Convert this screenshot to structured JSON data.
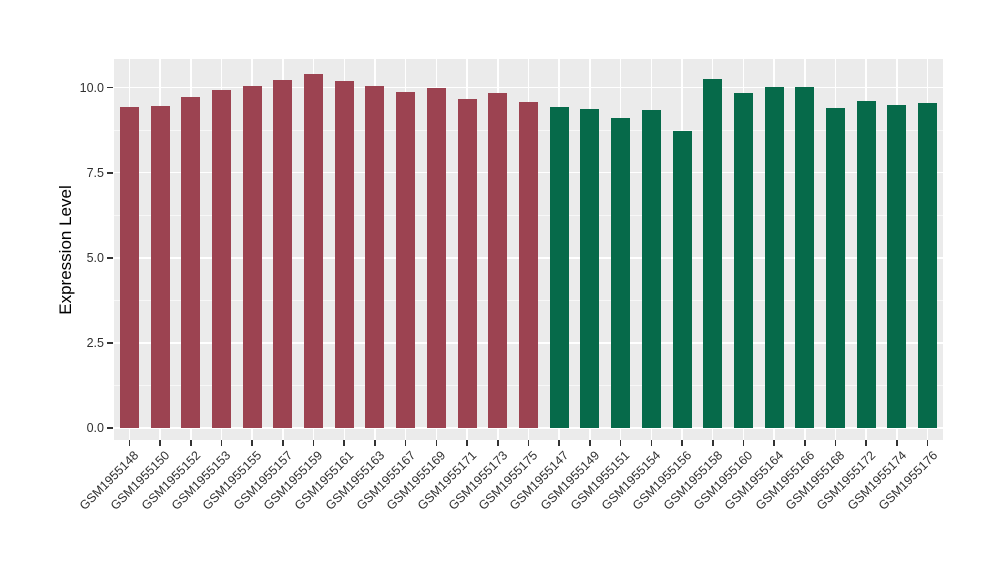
{
  "colors": {
    "figure_bg": "#FFFFFF",
    "panel_bg": "#EBEBEB",
    "grid_major": "#FFFFFF",
    "grid_minor": "rgba(255,255,255,0.6)",
    "tick_mark": "#333333",
    "axis_text": "#303030",
    "group1": "#9C4351",
    "group2": "#066A4A"
  },
  "chart_data": {
    "type": "bar",
    "title": "",
    "xlabel": "",
    "ylabel": "Expression Level",
    "ylim": [
      -0.35,
      10.84
    ],
    "yticks": [
      0,
      2.5,
      5,
      7.5,
      10
    ],
    "ytick_labels": [
      "0.0",
      "2.5",
      "5.0",
      "7.5",
      "10.0"
    ],
    "minor_yticks": [
      1.25,
      3.75,
      6.25,
      8.75
    ],
    "grid": true,
    "legend_position": "none",
    "bars": [
      {
        "label": "GSM1955148",
        "value": 9.43,
        "group": "group1"
      },
      {
        "label": "GSM1955150",
        "value": 9.46,
        "group": "group1"
      },
      {
        "label": "GSM1955152",
        "value": 9.71,
        "group": "group1"
      },
      {
        "label": "GSM1955153",
        "value": 9.93,
        "group": "group1"
      },
      {
        "label": "GSM1955155",
        "value": 10.06,
        "group": "group1"
      },
      {
        "label": "GSM1955157",
        "value": 10.21,
        "group": "group1"
      },
      {
        "label": "GSM1955159",
        "value": 10.4,
        "group": "group1"
      },
      {
        "label": "GSM1955161",
        "value": 10.18,
        "group": "group1"
      },
      {
        "label": "GSM1955163",
        "value": 10.05,
        "group": "group1"
      },
      {
        "label": "GSM1955167",
        "value": 9.88,
        "group": "group1"
      },
      {
        "label": "GSM1955169",
        "value": 9.99,
        "group": "group1"
      },
      {
        "label": "GSM1955171",
        "value": 9.67,
        "group": "group1"
      },
      {
        "label": "GSM1955173",
        "value": 9.83,
        "group": "group1"
      },
      {
        "label": "GSM1955175",
        "value": 9.57,
        "group": "group1"
      },
      {
        "label": "GSM1955147",
        "value": 9.43,
        "group": "group2"
      },
      {
        "label": "GSM1955149",
        "value": 9.37,
        "group": "group2"
      },
      {
        "label": "GSM1955151",
        "value": 9.12,
        "group": "group2"
      },
      {
        "label": "GSM1955154",
        "value": 9.34,
        "group": "group2"
      },
      {
        "label": "GSM1955156",
        "value": 8.72,
        "group": "group2"
      },
      {
        "label": "GSM1955158",
        "value": 10.26,
        "group": "group2"
      },
      {
        "label": "GSM1955160",
        "value": 9.85,
        "group": "group2"
      },
      {
        "label": "GSM1955164",
        "value": 10.02,
        "group": "group2"
      },
      {
        "label": "GSM1955166",
        "value": 10.03,
        "group": "group2"
      },
      {
        "label": "GSM1955168",
        "value": 9.4,
        "group": "group2"
      },
      {
        "label": "GSM1955172",
        "value": 9.61,
        "group": "group2"
      },
      {
        "label": "GSM1955174",
        "value": 9.5,
        "group": "group2"
      },
      {
        "label": "GSM1955176",
        "value": 9.54,
        "group": "group2"
      }
    ]
  }
}
